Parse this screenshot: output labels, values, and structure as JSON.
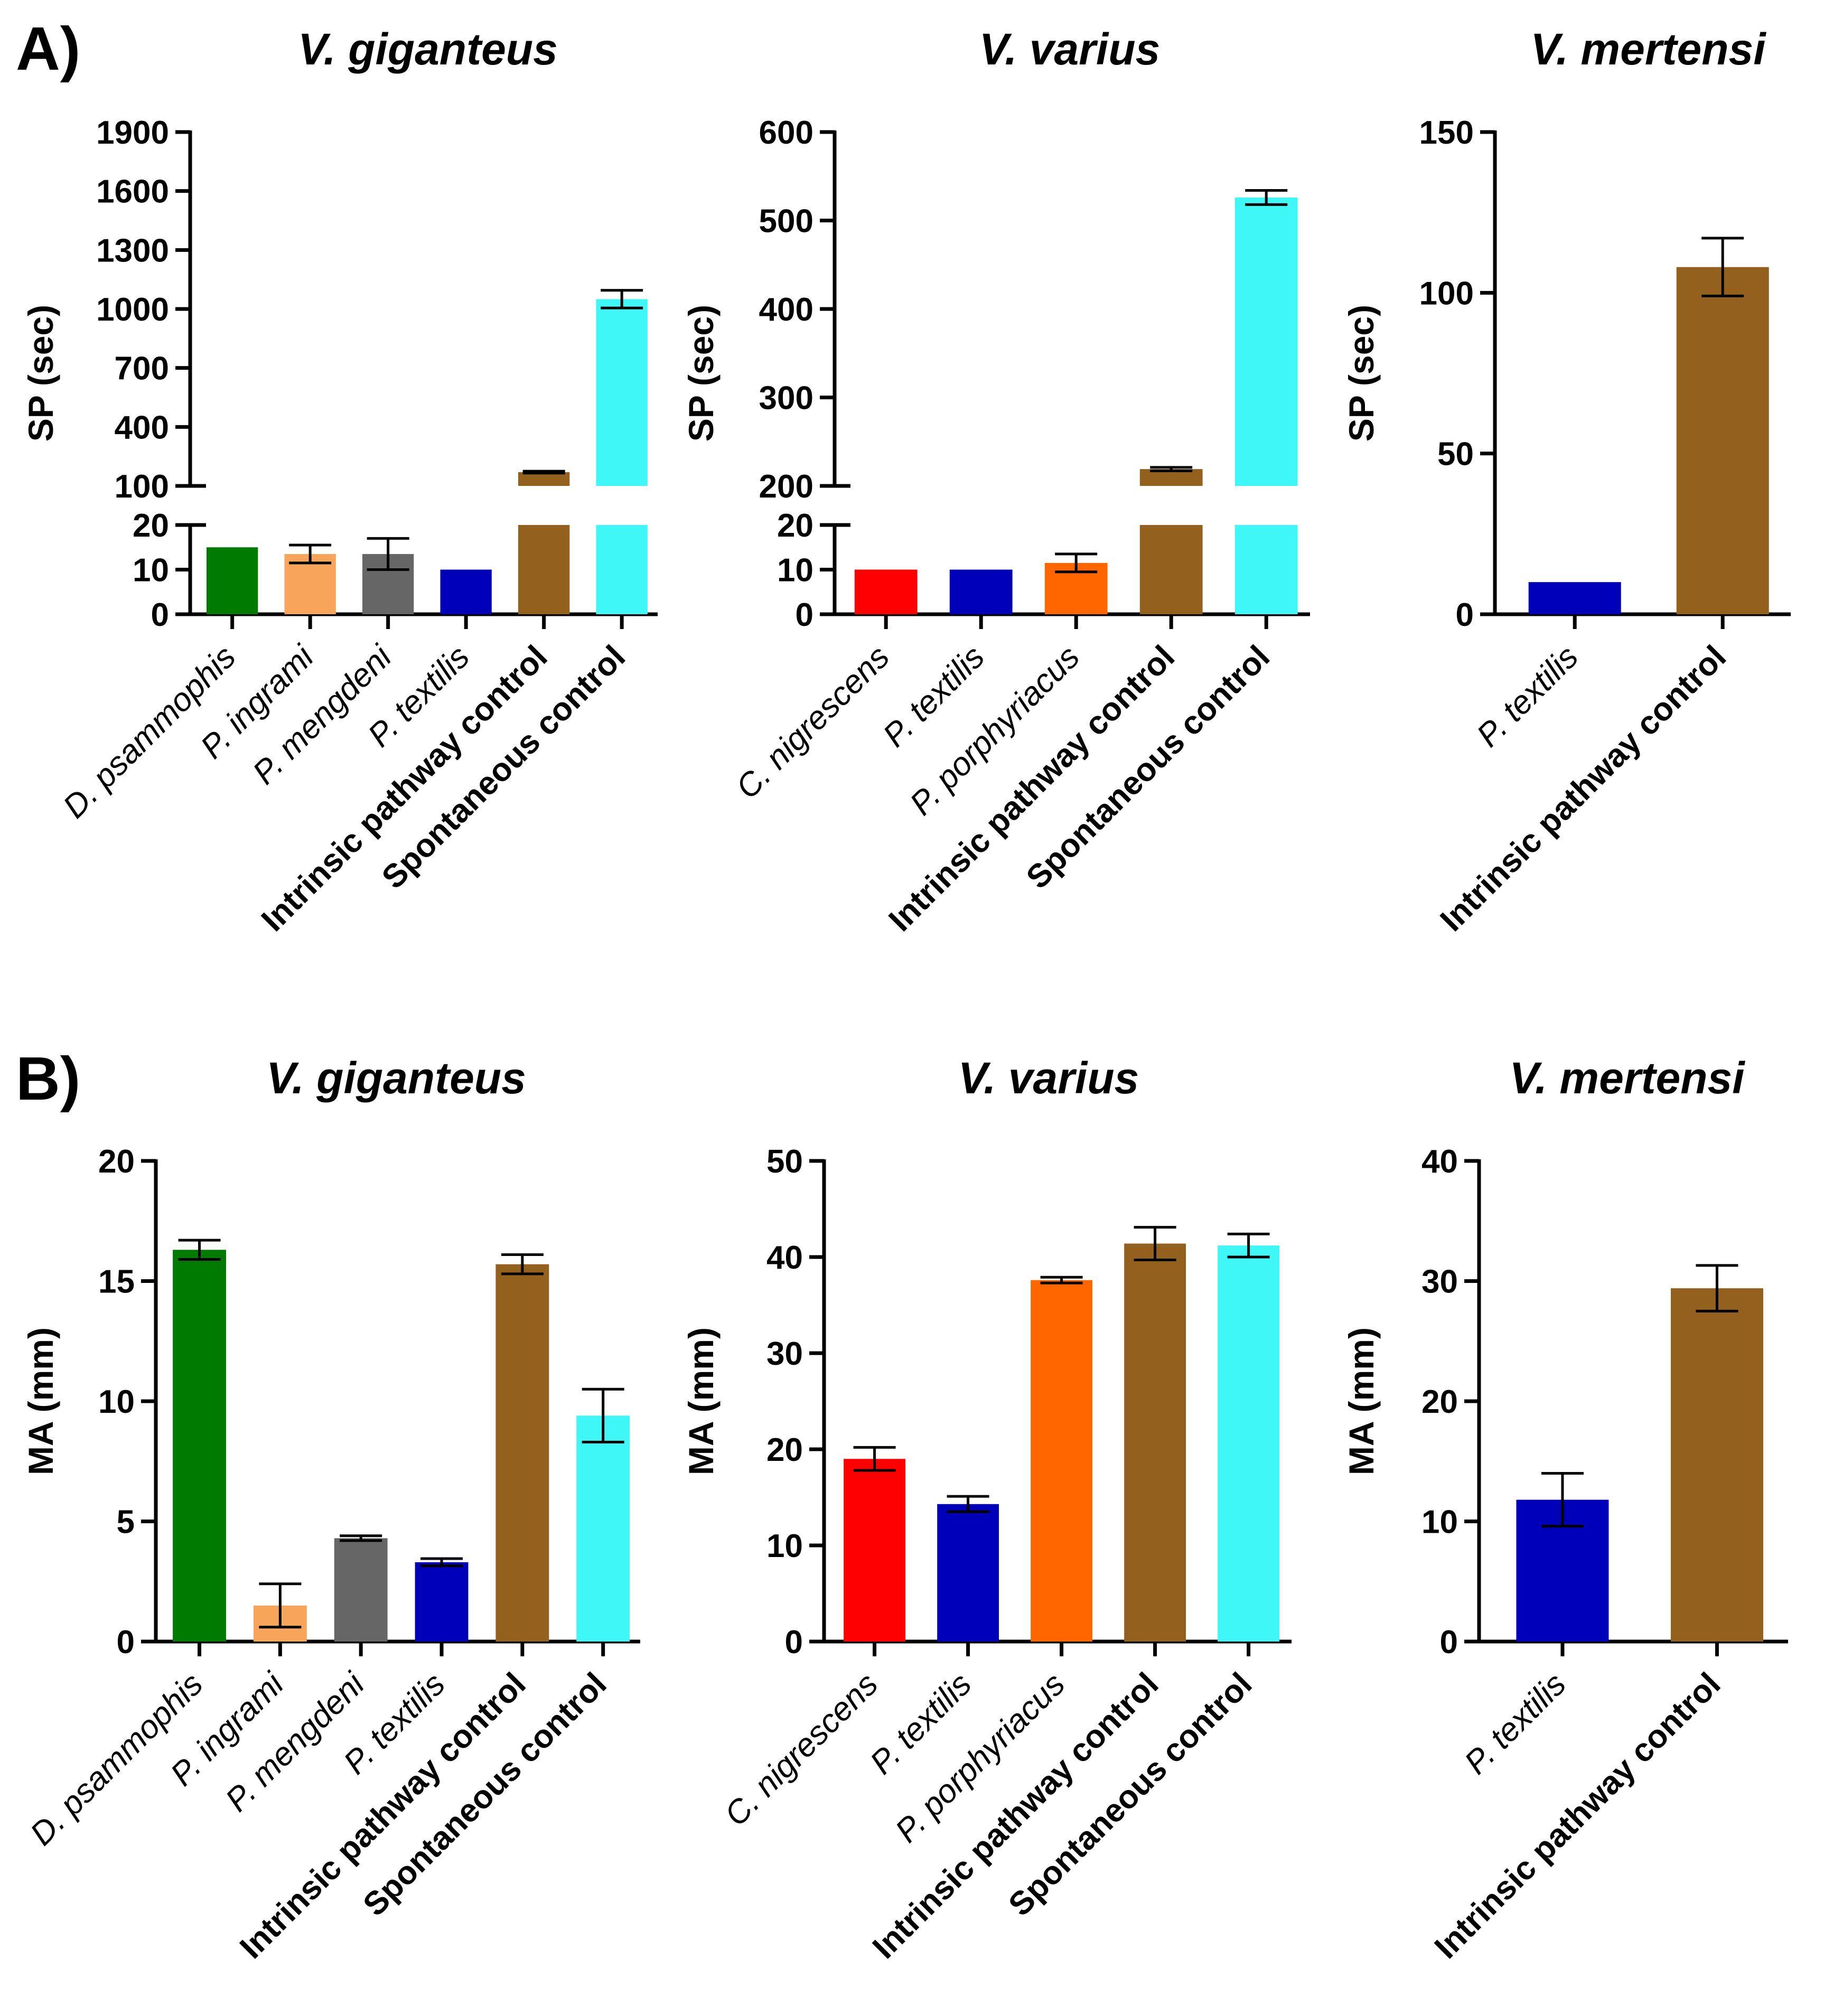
{
  "panels": {
    "A": {
      "label": "A)"
    },
    "B": {
      "label": "B)"
    }
  },
  "chart_data": [
    {
      "id": "A-gig",
      "panel": "A",
      "type": "bar",
      "title": "V. giganteus",
      "ylabel": "SP (sec)",
      "broken_axis": true,
      "lower_range": [
        0,
        20
      ],
      "upper_range": [
        100,
        1900
      ],
      "lower_ticks": [
        "0",
        "10",
        "20"
      ],
      "upper_ticks": [
        "100",
        "400",
        "700",
        "1000",
        "1300",
        "1600",
        "1900"
      ],
      "categories": [
        "D. psammophis",
        "P. ingrami",
        "P. mengdeni",
        "P. textilis",
        "Intrinsic pathway control",
        "Spontaneous control"
      ],
      "category_style": [
        "italic",
        "italic",
        "italic",
        "italic",
        "bold",
        "bold"
      ],
      "values": [
        15,
        13.5,
        13.5,
        10,
        170,
        1050
      ],
      "errors": [
        0,
        2,
        3.5,
        0,
        5,
        45
      ],
      "colors": [
        "#007a00",
        "#f7a55a",
        "#666666",
        "#0000b8",
        "#93601e",
        "#3ff7f7"
      ]
    },
    {
      "id": "A-var",
      "panel": "A",
      "type": "bar",
      "title": "V. varius",
      "ylabel": "SP (sec)",
      "broken_axis": true,
      "lower_range": [
        0,
        20
      ],
      "upper_range": [
        200,
        600
      ],
      "lower_ticks": [
        "0",
        "10",
        "20"
      ],
      "upper_ticks": [
        "200",
        "300",
        "400",
        "500",
        "600"
      ],
      "categories": [
        "C. nigrescens",
        "P. textilis",
        "P. porphyriacus",
        "Intrinsic pathway control",
        "Spontaneous control"
      ],
      "category_style": [
        "italic",
        "italic",
        "italic",
        "bold",
        "bold"
      ],
      "values": [
        10,
        10,
        11.5,
        219,
        526
      ],
      "errors": [
        0,
        0,
        2,
        2,
        8
      ],
      "colors": [
        "#ff0000",
        "#0000b8",
        "#ff6600",
        "#93601e",
        "#3ff7f7"
      ]
    },
    {
      "id": "A-mer",
      "panel": "A",
      "type": "bar",
      "title": "V. mertensi",
      "ylabel": "SP (sec)",
      "broken_axis": false,
      "ylim": [
        0,
        150
      ],
      "ticks": [
        "0",
        "50",
        "100",
        "150"
      ],
      "categories": [
        "P. textilis",
        "Intrinsic pathway control"
      ],
      "category_style": [
        "italic",
        "bold"
      ],
      "values": [
        10,
        108
      ],
      "errors": [
        0,
        9
      ],
      "colors": [
        "#0000b8",
        "#93601e"
      ]
    },
    {
      "id": "B-gig",
      "panel": "B",
      "type": "bar",
      "title": "V. giganteus",
      "ylabel": "MA (mm)",
      "broken_axis": false,
      "ylim": [
        0,
        20
      ],
      "ticks": [
        "0",
        "5",
        "10",
        "15",
        "20"
      ],
      "categories": [
        "D. psammophis",
        "P. ingrami",
        "P. mengdeni",
        "P. textilis",
        "Intrinsic pathway control",
        "Spontaneous control"
      ],
      "category_style": [
        "italic",
        "italic",
        "italic",
        "italic",
        "bold",
        "bold"
      ],
      "values": [
        16.3,
        1.5,
        4.3,
        3.3,
        15.7,
        9.4
      ],
      "errors": [
        0.4,
        0.9,
        0.1,
        0.15,
        0.4,
        1.1
      ],
      "colors": [
        "#007a00",
        "#f7a55a",
        "#666666",
        "#0000b8",
        "#93601e",
        "#3ff7f7"
      ]
    },
    {
      "id": "B-var",
      "panel": "B",
      "type": "bar",
      "title": "V. varius",
      "ylabel": "MA (mm)",
      "broken_axis": false,
      "ylim": [
        0,
        50
      ],
      "ticks": [
        "0",
        "10",
        "20",
        "30",
        "40",
        "50"
      ],
      "categories": [
        "C. nigrescens",
        "P. textilis",
        "P. porphyriacus",
        "Intrinsic pathway control",
        "Spontaneous control"
      ],
      "category_style": [
        "italic",
        "italic",
        "italic",
        "bold",
        "bold"
      ],
      "values": [
        19,
        14.3,
        37.6,
        41.4,
        41.2
      ],
      "errors": [
        1.2,
        0.8,
        0.3,
        1.7,
        1.2
      ],
      "colors": [
        "#ff0000",
        "#0000b8",
        "#ff6600",
        "#93601e",
        "#3ff7f7"
      ]
    },
    {
      "id": "B-mer",
      "panel": "B",
      "type": "bar",
      "title": "V. mertensi",
      "ylabel": "MA (mm)",
      "broken_axis": false,
      "ylim": [
        0,
        40
      ],
      "ticks": [
        "0",
        "10",
        "20",
        "30",
        "40"
      ],
      "categories": [
        "P. textilis",
        "Intrinsic pathway control"
      ],
      "category_style": [
        "italic",
        "bold"
      ],
      "values": [
        11.8,
        29.4
      ],
      "errors": [
        2.2,
        1.9
      ],
      "colors": [
        "#0000b8",
        "#93601e"
      ]
    }
  ]
}
